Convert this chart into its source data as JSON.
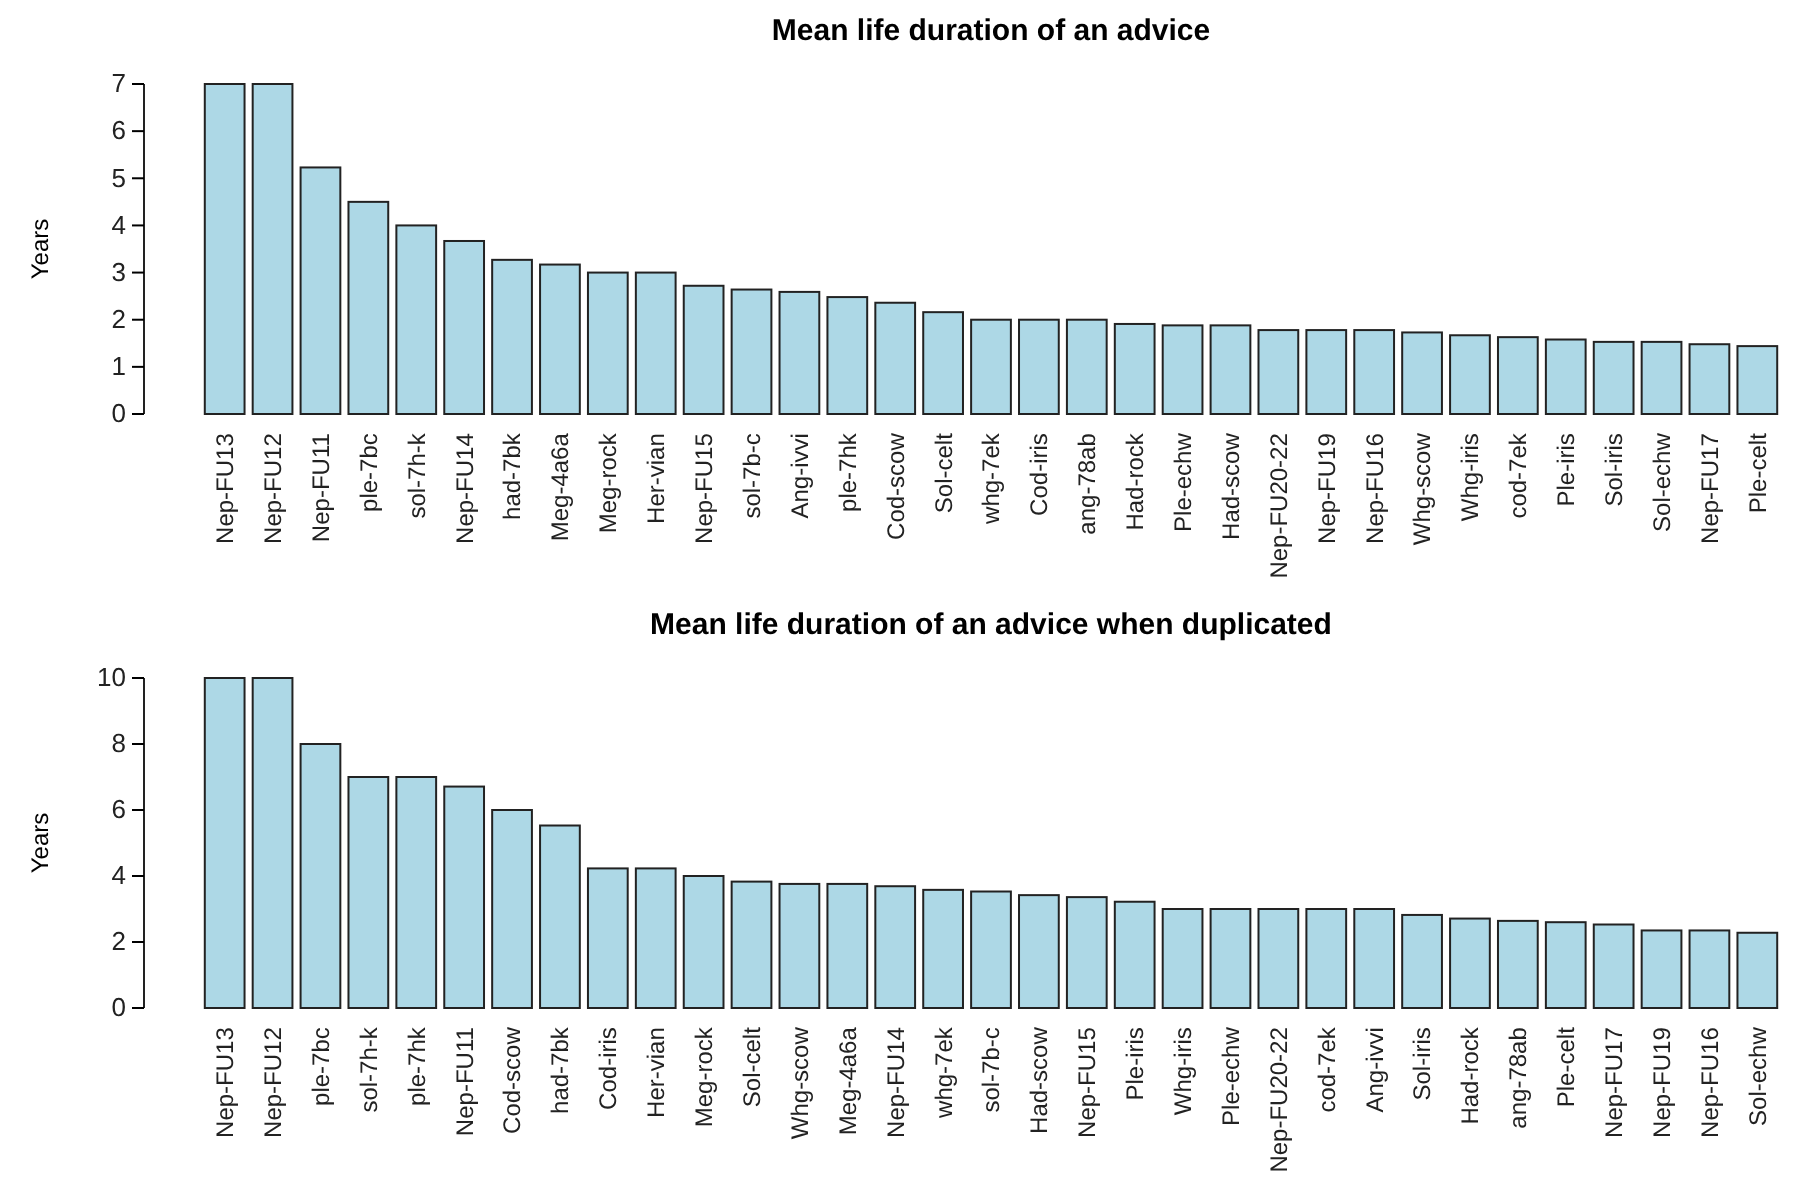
{
  "chart_data": [
    {
      "type": "bar",
      "title": "Mean life duration of an advice",
      "ylabel": "Years",
      "color": "#add8e6",
      "ylim": [
        0,
        7
      ],
      "yticks": [
        0,
        1,
        2,
        3,
        4,
        5,
        6,
        7
      ],
      "categories": [
        "Nep-FU13",
        "Nep-FU12",
        "Nep-FU11",
        "ple-7bc",
        "sol-7h-k",
        "Nep-FU14",
        "had-7bk",
        "Meg-4a6a",
        "Meg-rock",
        "Her-vian",
        "Nep-FU15",
        "sol-7b-c",
        "Ang-ivvi",
        "ple-7hk",
        "Cod-scow",
        "Sol-celt",
        "whg-7ek",
        "Cod-iris",
        "ang-78ab",
        "Had-rock",
        "Ple-echw",
        "Had-scow",
        "Nep-FU20-22",
        "Nep-FU19",
        "Nep-FU16",
        "Whg-scow",
        "Whg-iris",
        "cod-7ek",
        "Ple-iris",
        "Sol-iris",
        "Sol-echw",
        "Nep-FU17",
        "Ple-celt"
      ],
      "values": [
        7,
        7,
        5.23,
        4.5,
        4,
        3.67,
        3.27,
        3.17,
        3,
        3,
        2.72,
        2.64,
        2.59,
        2.48,
        2.36,
        2.16,
        2,
        2,
        2,
        1.91,
        1.88,
        1.88,
        1.78,
        1.78,
        1.78,
        1.73,
        1.67,
        1.63,
        1.58,
        1.53,
        1.53,
        1.48,
        1.44
      ]
    },
    {
      "type": "bar",
      "title": "Mean life duration of an advice when duplicated",
      "ylabel": "Years",
      "color": "#add8e6",
      "ylim": [
        0,
        10
      ],
      "yticks": [
        0,
        2,
        4,
        6,
        8,
        10
      ],
      "categories": [
        "Nep-FU13",
        "Nep-FU12",
        "ple-7bc",
        "sol-7h-k",
        "ple-7hk",
        "Nep-FU11",
        "Cod-scow",
        "had-7bk",
        "Cod-iris",
        "Her-vian",
        "Meg-rock",
        "Sol-celt",
        "Whg-scow",
        "Meg-4a6a",
        "Nep-FU14",
        "whg-7ek",
        "sol-7b-c",
        "Had-scow",
        "Nep-FU15",
        "Ple-iris",
        "Whg-iris",
        "Ple-echw",
        "Nep-FU20-22",
        "cod-7ek",
        "Ang-ivvi",
        "Sol-iris",
        "Had-rock",
        "ang-78ab",
        "Ple-celt",
        "Nep-FU17",
        "Nep-FU19",
        "Nep-FU16",
        "Sol-echw"
      ],
      "values": [
        10,
        10,
        8,
        7,
        7,
        6.71,
        6,
        5.53,
        4.23,
        4.23,
        4,
        3.83,
        3.76,
        3.76,
        3.69,
        3.58,
        3.53,
        3.42,
        3.36,
        3.22,
        3,
        3,
        3,
        3,
        3,
        2.82,
        2.71,
        2.64,
        2.6,
        2.53,
        2.35,
        2.35,
        2.28
      ]
    }
  ]
}
